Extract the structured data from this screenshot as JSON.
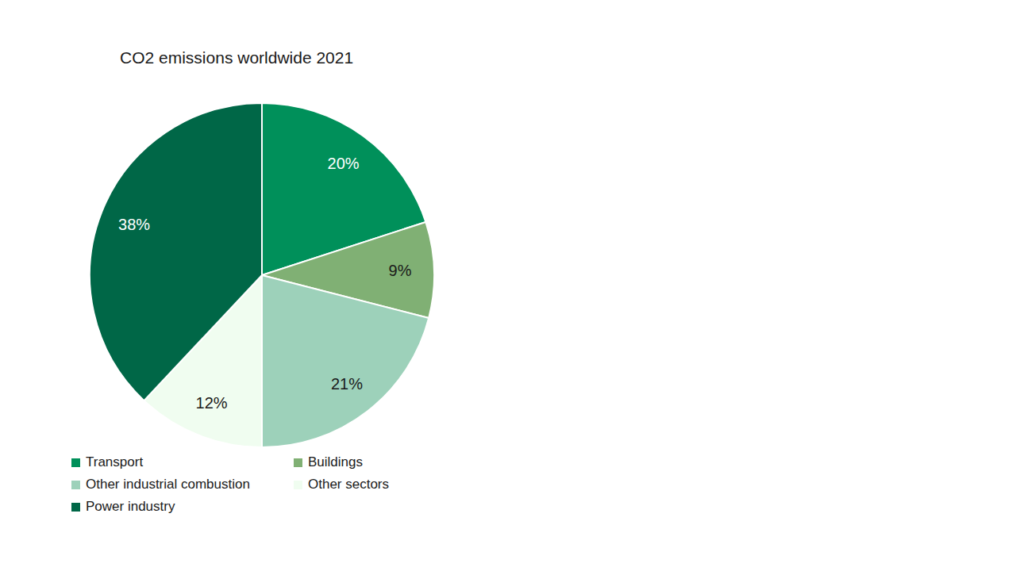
{
  "chart_data": {
    "type": "pie",
    "title": "CO2 emissions worldwide 2021",
    "categories": [
      "Transport",
      "Buildings",
      "Other industrial combustion",
      "Other sectors",
      "Power industry"
    ],
    "values": [
      20,
      9,
      21,
      12,
      38
    ],
    "value_labels": [
      "20%",
      "9%",
      "21%",
      "12%",
      "38%"
    ],
    "colors": [
      "#00905a",
      "#80b074",
      "#9dd1ba",
      "#f0fdf0",
      "#006747"
    ],
    "data_labels": true,
    "legend": "bottom"
  }
}
